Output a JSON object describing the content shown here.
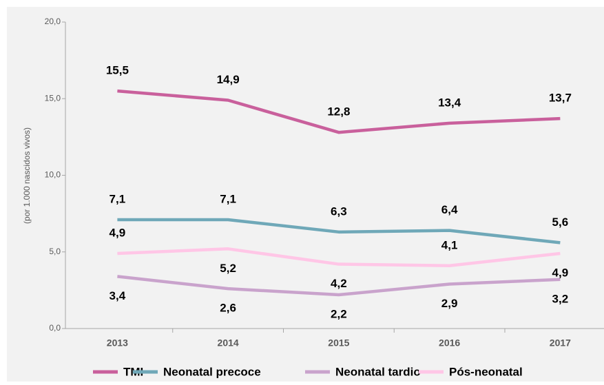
{
  "chart_data": {
    "type": "line",
    "y_label": "(por 1.000 nascidos vivos)",
    "categories": [
      "2013",
      "2014",
      "2015",
      "2016",
      "2017"
    ],
    "series": [
      {
        "name": "TMI",
        "color": "#c9609c",
        "values": [
          15.5,
          14.9,
          12.8,
          13.4,
          13.7
        ],
        "value_labels": [
          "15,5",
          "14,9",
          "12,8",
          "13,4",
          "13,7"
        ]
      },
      {
        "name": "Neonatal precoce",
        "color": "#6fa8b8",
        "values": [
          7.1,
          7.1,
          6.3,
          6.4,
          5.6
        ],
        "value_labels": [
          "7,1",
          "7,1",
          "6,3",
          "6,4",
          "5,6"
        ]
      },
      {
        "name": "Neonatal tardio",
        "color": "#c9a3cc",
        "values": [
          3.4,
          2.6,
          2.2,
          2.9,
          3.2
        ],
        "value_labels": [
          "3,4",
          "2,6",
          "2,2",
          "2,9",
          "3,2"
        ]
      },
      {
        "name": "Pós-neonatal",
        "color": "#ffc6e6",
        "values": [
          4.9,
          5.2,
          4.2,
          4.1,
          4.9
        ],
        "value_labels": [
          "4,9",
          "5,2",
          "4,2",
          "4,1",
          "4,9"
        ]
      }
    ],
    "ylim": [
      0,
      20
    ],
    "yticks": [
      {
        "value": 0,
        "label": "0,0"
      },
      {
        "value": 5,
        "label": "5,0"
      },
      {
        "value": 10,
        "label": "10,0"
      },
      {
        "value": 15,
        "label": "15,0"
      },
      {
        "value": 20,
        "label": "20,0"
      }
    ],
    "legend": "bottom"
  }
}
